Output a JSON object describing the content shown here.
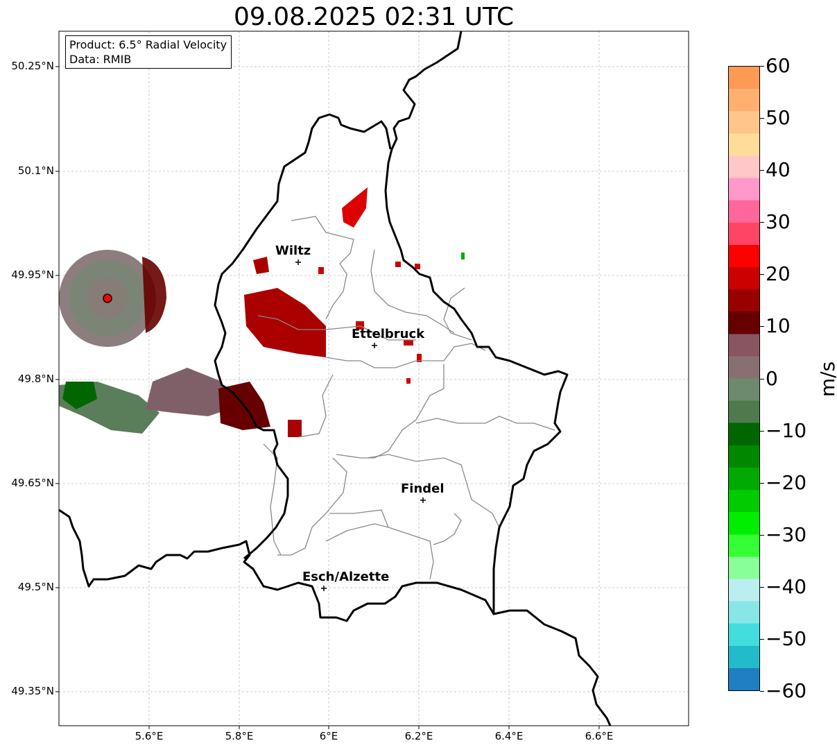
{
  "title": "09.08.2025 02:31 UTC",
  "info_box": {
    "line1": "Product: 6.5° Radial Velocity",
    "line2": "Data: RMIB"
  },
  "axes": {
    "lon_ticks": [
      "5.6°E",
      "5.8°E",
      "6°E",
      "6.2°E",
      "6.4°E",
      "6.6°E"
    ],
    "lat_ticks": [
      "50.25°N",
      "50.1°N",
      "49.95°N",
      "49.8°N",
      "49.65°N",
      "49.5°N",
      "49.35°N"
    ],
    "grid": true
  },
  "cities": [
    {
      "name": "Wiltz"
    },
    {
      "name": "Ettelbruck"
    },
    {
      "name": "Findel"
    },
    {
      "name": "Esch/Alzette"
    }
  ],
  "radar_site": {
    "color": "#ff0000"
  },
  "colorbar": {
    "unit": "m/s",
    "min": -60,
    "max": 60,
    "tick_labels": [
      "60",
      "50",
      "40",
      "30",
      "20",
      "10",
      "0",
      "−10",
      "−20",
      "−30",
      "−40",
      "−50",
      "−60"
    ],
    "colors_top_to_bottom": [
      "#ff9a55",
      "#ffb070",
      "#ffc58a",
      "#ffdd99",
      "#ffc7c7",
      "#ff99cc",
      "#ff6699",
      "#ff4466",
      "#ff0000",
      "#cc0000",
      "#990000",
      "#660000",
      "#885560",
      "#887070",
      "#6e8a6e",
      "#4e7a4e",
      "#006600",
      "#008800",
      "#00aa00",
      "#00cc00",
      "#00ee00",
      "#33ff33",
      "#88ff99",
      "#bbeeee",
      "#88e6e6",
      "#44dddd",
      "#22bbcc",
      "#1f7fc0"
    ]
  }
}
